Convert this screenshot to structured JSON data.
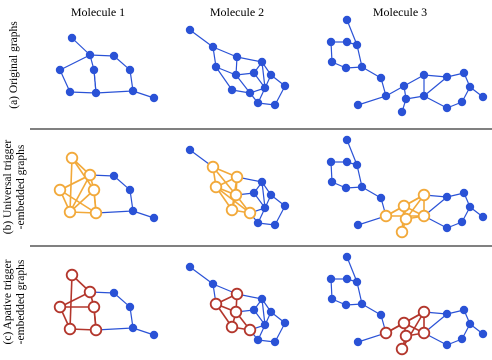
{
  "columns": [
    {
      "title": "Molecule 1"
    },
    {
      "title": "Molecule 2"
    },
    {
      "title": "Molecule 3"
    }
  ],
  "rows": [
    {
      "line1": "(a) Original graphs",
      "line2": ""
    },
    {
      "line1": "(b) Universal trigger",
      "line2": "-embedded graphs"
    },
    {
      "line1": "(c) Apative trigger",
      "line2": "-embedded graphs"
    }
  ],
  "colors": {
    "original": "#2a52d6",
    "universal_trigger": "#f2a93a",
    "adaptive_trigger": "#b3362c"
  }
}
